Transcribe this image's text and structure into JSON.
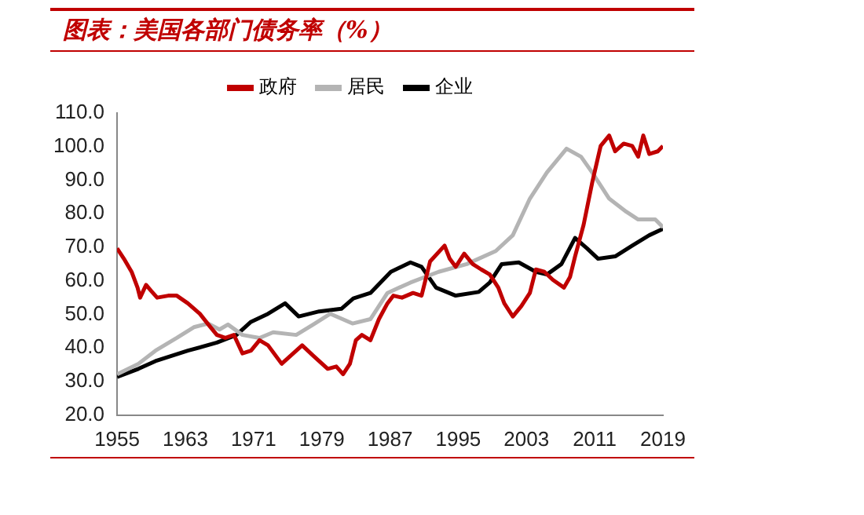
{
  "chart_data": {
    "type": "line",
    "title": "图表：美国各部门债务率（%）",
    "legend": "top",
    "xlim": [
      1955,
      2019
    ],
    "xticks": [
      1955,
      1963,
      1971,
      1979,
      1987,
      1995,
      2003,
      2011,
      2019
    ],
    "ylim": [
      20,
      110
    ],
    "yticks": [
      {
        "value": 20,
        "label": "20.0"
      },
      {
        "value": 30,
        "label": "30.0"
      },
      {
        "value": 40,
        "label": "40.0"
      },
      {
        "value": 50,
        "label": "50.0"
      },
      {
        "value": 60,
        "label": "60.0"
      },
      {
        "value": 70,
        "label": "70.0"
      },
      {
        "value": 80,
        "label": "80.0"
      },
      {
        "value": 90,
        "label": "90.0"
      },
      {
        "value": 100,
        "label": "100.0"
      },
      {
        "value": 110,
        "label": "110.0"
      }
    ],
    "series": [
      {
        "name": "政府",
        "color": "#c00000",
        "x": [
          1955,
          1955.8,
          1956.7,
          1957.4,
          1957.7,
          1958.4,
          1959,
          1959.7,
          1961,
          1962,
          1963.3,
          1964.7,
          1965.7,
          1966.7,
          1967.7,
          1968.7,
          1969.7,
          1970.7,
          1971.7,
          1972.7,
          1974.3,
          1976.7,
          1978,
          1979.7,
          1980.7,
          1981.5,
          1982.3,
          1983,
          1983.7,
          1984.7,
          1985.7,
          1986.7,
          1987.4,
          1988.4,
          1989.7,
          1990.7,
          1991.7,
          1993.4,
          1994,
          1994.7,
          1995.7,
          1996.7,
          1997.7,
          1998.7,
          1999.7,
          2000.4,
          2001.4,
          2002.4,
          2003.4,
          2004.1,
          2005.1,
          2006.1,
          2007.4,
          2008.1,
          2008.7,
          2009.7,
          2010.7,
          2011.7,
          2012.7,
          2013.4,
          2014.4,
          2015.4,
          2016.1,
          2016.7,
          2017.4,
          2018.4,
          2019
        ],
        "values": [
          69.7,
          66.6,
          62.7,
          58,
          55,
          58.8,
          57,
          55,
          55.6,
          55.6,
          53.3,
          50.2,
          47,
          43.9,
          43,
          43.9,
          38.4,
          39.2,
          42.3,
          40.8,
          35.3,
          40.8,
          37.7,
          33.8,
          34.5,
          32.2,
          35.3,
          42.3,
          43.9,
          42.3,
          48.6,
          53.3,
          55.6,
          55,
          56.4,
          55.6,
          65.8,
          70.5,
          66.6,
          64.2,
          68.1,
          65,
          63.4,
          61.9,
          58,
          53.3,
          49.4,
          52.5,
          56.4,
          63.4,
          62.7,
          60.3,
          58,
          61.1,
          67.3,
          76.7,
          89.2,
          100.2,
          103.3,
          98.6,
          100.9,
          100.2,
          97,
          103.3,
          97.8,
          98.6,
          100.2
        ]
      },
      {
        "name": "居民",
        "color": "#b4b4b4",
        "x": [
          1955,
          1957.5,
          1959.5,
          1962,
          1964,
          1965.7,
          1967,
          1968,
          1969.7,
          1971.7,
          1973.3,
          1976,
          1978,
          1980,
          1982.6,
          1984.7,
          1986.7,
          1989.4,
          1992.7,
          1996,
          1999.4,
          2001.4,
          2003.4,
          2005.4,
          2007.7,
          2009.4,
          2010.7,
          2012.7,
          2014.7,
          2016.1,
          2018.1,
          2019
        ],
        "values": [
          32.2,
          35.3,
          39.2,
          43,
          46.2,
          47.3,
          45.5,
          47,
          43.9,
          43,
          44.7,
          43.9,
          47,
          50.2,
          47.3,
          48.6,
          56.4,
          59.5,
          62.7,
          65,
          68.9,
          73.6,
          84.5,
          92.3,
          99.4,
          97,
          92.3,
          84.5,
          80.6,
          78.3,
          78.3,
          76
        ]
      },
      {
        "name": "企业",
        "color": "#000000",
        "x": [
          1955,
          1957.5,
          1959.5,
          1963.3,
          1966.7,
          1969,
          1970.7,
          1972.7,
          1974.7,
          1976.3,
          1978.7,
          1981.3,
          1982.7,
          1984.7,
          1987.1,
          1989.4,
          1990.7,
          1992.4,
          1994.7,
          1997.4,
          1998.7,
          2000.1,
          2002.1,
          2004.1,
          2005.4,
          2007.1,
          2008.7,
          2010.1,
          2011.4,
          2013.4,
          2015.4,
          2017.4,
          2019
        ],
        "values": [
          31.4,
          33.8,
          36.1,
          39.2,
          41.6,
          43.9,
          47.8,
          50.2,
          53.3,
          49.4,
          50.9,
          51.7,
          54.8,
          56.4,
          62.7,
          65.5,
          64.2,
          58,
          55.6,
          56.7,
          59.5,
          65,
          65.5,
          62.7,
          61.9,
          65,
          72.8,
          69.7,
          66.6,
          67.3,
          70.5,
          73.6,
          75.5
        ]
      }
    ]
  }
}
